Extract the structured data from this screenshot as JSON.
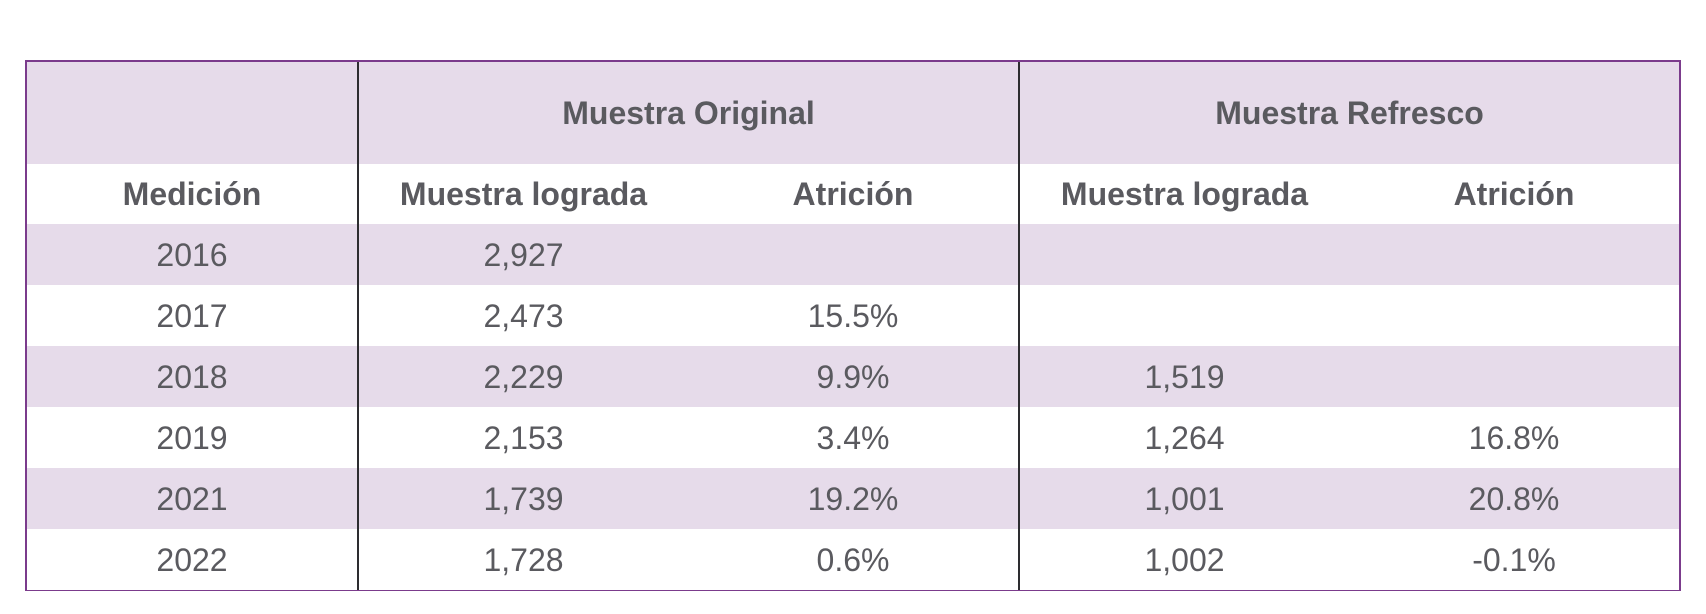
{
  "table": {
    "group_headers": {
      "medicion_blank": "",
      "original": "Muestra Original",
      "refresco": "Muestra Refresco"
    },
    "column_headers": {
      "medicion": "Medición",
      "original_muestra": "Muestra lograda",
      "original_atricion": "Atrición",
      "refresco_muestra": "Muestra lograda",
      "refresco_atricion": "Atrición"
    },
    "rows": [
      {
        "medicion": "2016",
        "original_muestra": "2,927",
        "original_atricion": "",
        "refresco_muestra": "",
        "refresco_atricion": ""
      },
      {
        "medicion": "2017",
        "original_muestra": "2,473",
        "original_atricion": "15.5%",
        "refresco_muestra": "",
        "refresco_atricion": ""
      },
      {
        "medicion": "2018",
        "original_muestra": "2,229",
        "original_atricion": "9.9%",
        "refresco_muestra": "1,519",
        "refresco_atricion": ""
      },
      {
        "medicion": "2019",
        "original_muestra": "2,153",
        "original_atricion": "3.4%",
        "refresco_muestra": "1,264",
        "refresco_atricion": "16.8%"
      },
      {
        "medicion": "2021",
        "original_muestra": "1,739",
        "original_atricion": "19.2%",
        "refresco_muestra": "1,001",
        "refresco_atricion": "20.8%"
      },
      {
        "medicion": "2022",
        "original_muestra": "1,728",
        "original_atricion": "0.6%",
        "refresco_muestra": "1,002",
        "refresco_atricion": "-0.1%"
      }
    ]
  },
  "colors": {
    "shade": "#e6dbea",
    "border_accent": "#7b3b8c",
    "divider": "#2d2d30",
    "text": "#5a5a5f"
  }
}
